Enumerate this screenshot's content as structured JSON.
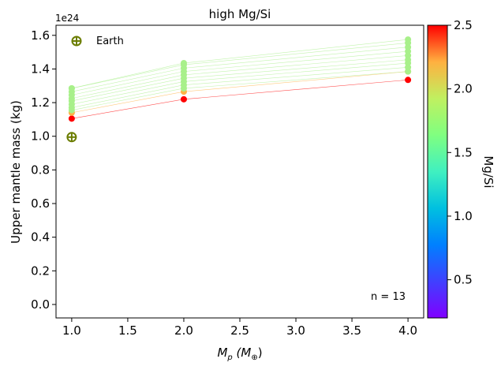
{
  "chart_data": {
    "type": "scatter",
    "title": "high Mg/Si",
    "xlabel_main": "M",
    "xlabel_sub": "p",
    "xlabel_unit_open": " (M",
    "xlabel_unit_sub": "⊕",
    "xlabel_unit_close": ")",
    "ylabel": "Upper mantle mass (kg)",
    "y_multiplier": "1e24",
    "xlim": [
      0.86,
      4.14
    ],
    "ylim": [
      -0.08,
      1.66
    ],
    "xticks": [
      1.0,
      1.5,
      2.0,
      2.5,
      3.0,
      3.5,
      4.0
    ],
    "xtick_labels": [
      "1.0",
      "1.5",
      "2.0",
      "2.5",
      "3.0",
      "3.5",
      "4.0"
    ],
    "yticks": [
      0.0,
      0.2,
      0.4,
      0.6,
      0.8,
      1.0,
      1.2,
      1.4,
      1.6
    ],
    "ytick_labels": [
      "0.0",
      "0.2",
      "0.4",
      "0.6",
      "0.8",
      "1.0",
      "1.2",
      "1.4",
      "1.6"
    ],
    "x": [
      1.0,
      2.0,
      4.0
    ],
    "series": [
      {
        "mgsi": 2.5,
        "color": "#ff0000",
        "values": [
          1.105,
          1.22,
          1.335
        ]
      },
      {
        "mgsi": 1.9,
        "color": "#ffb347",
        "values": [
          1.14,
          1.265,
          1.385
        ]
      },
      {
        "mgsi": 1.45,
        "color": "#a8f08a",
        "values": [
          1.155,
          1.285,
          1.385
        ]
      },
      {
        "mgsi": 1.45,
        "color": "#a8f08a",
        "values": [
          1.17,
          1.305,
          1.41
        ]
      },
      {
        "mgsi": 1.45,
        "color": "#a8f08a",
        "values": [
          1.19,
          1.325,
          1.435
        ]
      },
      {
        "mgsi": 1.45,
        "color": "#a8f08a",
        "values": [
          1.21,
          1.345,
          1.455
        ]
      },
      {
        "mgsi": 1.45,
        "color": "#a8f08a",
        "values": [
          1.225,
          1.365,
          1.48
        ]
      },
      {
        "mgsi": 1.45,
        "color": "#a8f08a",
        "values": [
          1.245,
          1.385,
          1.505
        ]
      },
      {
        "mgsi": 1.45,
        "color": "#a8f08a",
        "values": [
          1.265,
          1.405,
          1.53
        ]
      },
      {
        "mgsi": 1.45,
        "color": "#a8f08a",
        "values": [
          1.285,
          1.425,
          1.555
        ]
      },
      {
        "mgsi": 1.45,
        "color": "#a8f08a",
        "values": [
          1.285,
          1.435,
          1.575
        ]
      }
    ],
    "earth_point": {
      "x": 1.0,
      "y": 0.995,
      "color": "#6b7d00"
    },
    "legend": {
      "label": "Earth",
      "position": "top-left",
      "color": "#6b7d00"
    },
    "annotation": "n = 13",
    "colorbar": {
      "label": "Mg/Si",
      "range": [
        0.2,
        2.5
      ],
      "ticks": [
        0.5,
        1.0,
        1.5,
        2.0,
        2.5
      ],
      "tick_labels": [
        "0.5",
        "1.0",
        "1.5",
        "2.0",
        "2.5"
      ],
      "colormap": "rainbow"
    }
  }
}
